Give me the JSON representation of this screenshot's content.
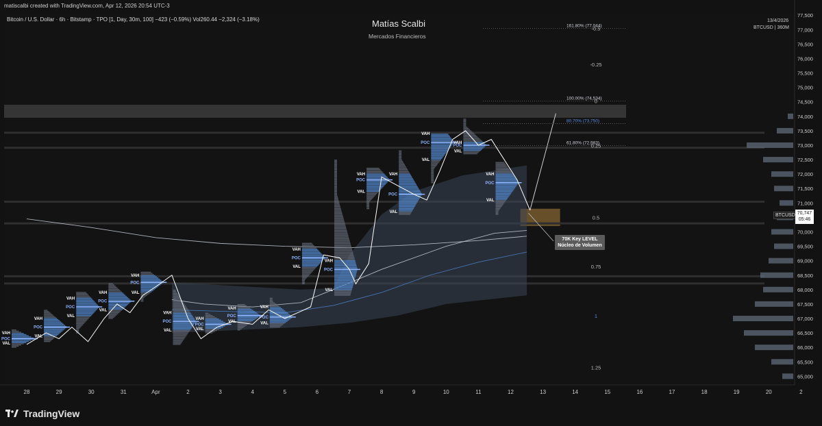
{
  "header": {
    "created_by": "matiscalbi created with TradingView.com, Apr 12, 2026 20:54 UTC-3",
    "legend": "Bitcoin / U.S. Dollar · 6h · Bitstamp · TPO [1, Day, 30m, 100]  −423 (−0.59%)  Vol260.44  −2,324 (−3.18%)",
    "watermark_title": "Matías Scalbi",
    "watermark_subtitle": "Mercados Financieros",
    "date": "13/4/2026",
    "symbol_interval": "BTCUSD | 360M"
  },
  "footer": {
    "brand": "TradingView"
  },
  "price_label": {
    "symbol": "BTCUSD",
    "price": "70,747",
    "countdown": "05:46"
  },
  "annotation": {
    "line1": "70K Key LEVEL",
    "line2": "Núcleo de Volumen"
  },
  "chart_data": {
    "type": "candlestick",
    "symbol": "BTCUSD",
    "exchange": "Bitstamp",
    "timeframe": "6h",
    "y_axis": {
      "range": [
        64700,
        77600
      ],
      "ticks": [
        65000,
        65500,
        66000,
        66500,
        67000,
        67500,
        68000,
        68500,
        69000,
        69500,
        70000,
        70500,
        71000,
        71500,
        72000,
        72500,
        73000,
        73500,
        74000,
        74500,
        75000,
        75500,
        76000,
        76500,
        77000,
        77500
      ],
      "tick_labels": [
        "65,000",
        "65,500",
        "66,000",
        "66,500",
        "67,000",
        "67,500",
        "68,000",
        "68,500",
        "69,000",
        "69,500",
        "70,000",
        "70,500",
        "71,000",
        "71,500",
        "72,000",
        "72,500",
        "73,000",
        "73,500",
        "74,000",
        "74,500",
        "75,000",
        "75,500",
        "76,000",
        "76,500",
        "77,000",
        "77,500"
      ]
    },
    "x_axis": {
      "labels": [
        "28",
        "29",
        "30",
        "31",
        "Apr",
        "2",
        "3",
        "4",
        "5",
        "6",
        "7",
        "8",
        "9",
        "10",
        "11",
        "12",
        "13",
        "14",
        "15",
        "16",
        "17",
        "18",
        "19",
        "20",
        "2"
      ],
      "day_index": [
        0,
        1,
        2,
        3,
        4,
        5,
        6,
        7,
        8,
        9,
        10,
        11,
        12,
        13,
        14,
        15,
        16,
        17,
        18,
        19,
        20,
        21,
        22,
        23,
        24
      ]
    },
    "fibonacci": {
      "levels": [
        {
          "ratio_label": "-0.5",
          "text": "161.80% (77,044)",
          "price": 77044
        },
        {
          "ratio_label": "-0.25",
          "text": "",
          "price": 75800
        },
        {
          "ratio_label": "0",
          "text": "100.00% (74,534)",
          "price": 74534
        },
        {
          "ratio_label": "",
          "text": "80.70% (73,750)",
          "price": 73750
        },
        {
          "ratio_label": "0.25",
          "text": "61.80% (72,983)",
          "price": 72983
        },
        {
          "ratio_label": "0.5",
          "text": "",
          "price": 70500
        },
        {
          "ratio_label": "0.75",
          "text": "",
          "price": 68800
        },
        {
          "ratio_label": "1",
          "text": "",
          "price": 67100
        },
        {
          "ratio_label": "1.25",
          "text": "",
          "price": 65300
        }
      ]
    },
    "zones": [
      {
        "name": "resistance",
        "from": 73950,
        "to": 74400
      },
      {
        "name": "key-level",
        "from": 70200,
        "to": 70800
      }
    ],
    "moving_averages": [
      {
        "name": "ma-slow",
        "color": "#c9cfd8",
        "points": [
          [
            0,
            70450
          ],
          [
            2,
            70150
          ],
          [
            4,
            69800
          ],
          [
            6,
            69600
          ],
          [
            8,
            69500
          ],
          [
            10,
            69450
          ],
          [
            12,
            69550
          ],
          [
            14,
            69700
          ],
          [
            15.5,
            69850
          ]
        ]
      },
      {
        "name": "ma-mid",
        "color": "#c9cfd8",
        "points": [
          [
            4.5,
            67650
          ],
          [
            5.5,
            67500
          ],
          [
            7,
            67400
          ],
          [
            8.5,
            67550
          ],
          [
            9.5,
            68000
          ],
          [
            11,
            68700
          ],
          [
            13,
            69500
          ],
          [
            14.5,
            69950
          ],
          [
            15.5,
            70050
          ]
        ]
      },
      {
        "name": "ma-fast",
        "color": "#4c80c9",
        "points": [
          [
            4.5,
            67300
          ],
          [
            6,
            67250
          ],
          [
            8,
            67200
          ],
          [
            9.5,
            67450
          ],
          [
            11,
            67900
          ],
          [
            12.5,
            68500
          ],
          [
            14,
            68950
          ],
          [
            15.5,
            69300
          ]
        ]
      }
    ],
    "band": {
      "upper": [
        [
          4.5,
          68250
        ],
        [
          8.5,
          68000
        ],
        [
          9.5,
          68050
        ],
        [
          10,
          69200
        ],
        [
          11,
          70600
        ],
        [
          12,
          71400
        ],
        [
          13.5,
          71950
        ],
        [
          15.5,
          72300
        ]
      ],
      "lower": [
        [
          4.5,
          66500
        ],
        [
          8.5,
          66700
        ],
        [
          10,
          66850
        ],
        [
          11.5,
          67100
        ],
        [
          13,
          67500
        ],
        [
          15.5,
          67800
        ]
      ]
    },
    "tpo_profiles": [
      {
        "day": 0,
        "high": 66600,
        "low": 66000,
        "poc": 66300,
        "vah": 66500,
        "val": 66150
      },
      {
        "day": 1,
        "high": 67300,
        "low": 66200,
        "poc": 66700,
        "vah": 67000,
        "val": 66400
      },
      {
        "day": 2,
        "high": 67900,
        "low": 66500,
        "poc": 67400,
        "vah": 67700,
        "val": 67100
      },
      {
        "day": 3,
        "high": 68200,
        "low": 67000,
        "poc": 67600,
        "vah": 67900,
        "val": 67300
      },
      {
        "day": 4,
        "high": 68600,
        "low": 67600,
        "poc": 68250,
        "vah": 68500,
        "val": 67900
      },
      {
        "day": 5,
        "high": 68000,
        "low": 66100,
        "poc": 66900,
        "vah": 67200,
        "val": 66600
      },
      {
        "day": 6,
        "high": 67200,
        "low": 66500,
        "poc": 66800,
        "vah": 67000,
        "val": 66650
      },
      {
        "day": 7,
        "high": 67500,
        "low": 66600,
        "poc": 67100,
        "vah": 67350,
        "val": 66900
      },
      {
        "day": 8,
        "high": 67700,
        "low": 66700,
        "poc": 67050,
        "vah": 67400,
        "val": 66850
      },
      {
        "day": 9,
        "high": 69600,
        "low": 68200,
        "poc": 69100,
        "vah": 69400,
        "val": 68800
      },
      {
        "day": 10,
        "high": 72500,
        "low": 67800,
        "poc": 68700,
        "vah": 69000,
        "val": 68000
      },
      {
        "day": 11,
        "high": 72200,
        "low": 70800,
        "poc": 71800,
        "vah": 72000,
        "val": 71400
      },
      {
        "day": 12,
        "high": 72800,
        "low": 70600,
        "poc": 71300,
        "vah": 72000,
        "val": 70700
      },
      {
        "day": 13,
        "high": 73400,
        "low": 71700,
        "poc": 73100,
        "vah": 73400,
        "val": 72500
      },
      {
        "day": 14,
        "high": 73900,
        "low": 72700,
        "poc": 73000,
        "vah": 73100,
        "val": 72800
      },
      {
        "day": 15,
        "high": 72400,
        "low": 70600,
        "poc": 71700,
        "vah": 72000,
        "val": 71100
      }
    ],
    "price_path": [
      [
        0,
        66100
      ],
      [
        0.6,
        66500
      ],
      [
        1,
        66300
      ],
      [
        1.4,
        66700
      ],
      [
        1.9,
        66200
      ],
      [
        2.4,
        67000
      ],
      [
        2.8,
        67500
      ],
      [
        3.2,
        67200
      ],
      [
        3.6,
        67800
      ],
      [
        4,
        68100
      ],
      [
        4.5,
        68500
      ],
      [
        5,
        67000
      ],
      [
        5.4,
        66300
      ],
      [
        5.9,
        66700
      ],
      [
        6.4,
        66900
      ],
      [
        7,
        66800
      ],
      [
        7.5,
        67300
      ],
      [
        8,
        67000
      ],
      [
        8.4,
        67200
      ],
      [
        8.8,
        67400
      ],
      [
        9.2,
        69200
      ],
      [
        9.7,
        69100
      ],
      [
        10,
        68700
      ],
      [
        10.2,
        68200
      ],
      [
        10.6,
        68900
      ],
      [
        11,
        71900
      ],
      [
        11.5,
        71600
      ],
      [
        12,
        71300
      ],
      [
        12.4,
        71100
      ],
      [
        12.8,
        72100
      ],
      [
        13.2,
        73200
      ],
      [
        13.6,
        73500
      ],
      [
        14,
        73000
      ],
      [
        14.4,
        73200
      ],
      [
        14.8,
        72500
      ],
      [
        15.2,
        71800
      ],
      [
        15.6,
        70747
      ]
    ],
    "projection": [
      [
        15.6,
        70747
      ],
      [
        16.4,
        74100
      ]
    ],
    "last_price": 70747,
    "volume_profile_right": [
      [
        65000,
        20
      ],
      [
        65500,
        40
      ],
      [
        66000,
        70
      ],
      [
        66500,
        90
      ],
      [
        67000,
        110
      ],
      [
        67500,
        70
      ],
      [
        68000,
        55
      ],
      [
        68500,
        60
      ],
      [
        69000,
        45
      ],
      [
        69500,
        35
      ],
      [
        70000,
        40
      ],
      [
        70500,
        30
      ],
      [
        71000,
        25
      ],
      [
        71500,
        35
      ],
      [
        72000,
        40
      ],
      [
        72500,
        55
      ],
      [
        73000,
        85
      ],
      [
        73500,
        30
      ],
      [
        74000,
        10
      ]
    ]
  }
}
